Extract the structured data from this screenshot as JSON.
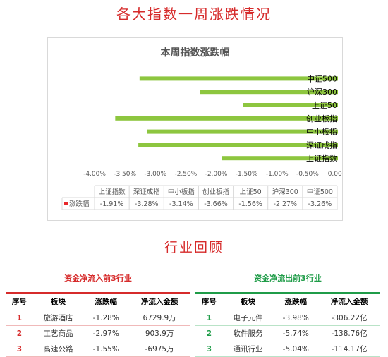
{
  "page": {
    "title": "各大指数一周涨跌情况",
    "section_title": "行业回顾"
  },
  "chart_data": {
    "type": "bar",
    "orientation": "horizontal",
    "title": "本周指数涨跌幅",
    "categories": [
      "中证500",
      "沪深300",
      "上证50",
      "创业板指",
      "中小板指",
      "深证成指",
      "上证指数"
    ],
    "series": [
      {
        "name": "涨跌幅",
        "values": [
          -3.26,
          -2.27,
          -1.56,
          -3.66,
          -3.14,
          -3.28,
          -1.91
        ],
        "color": "#8dc63f"
      }
    ],
    "xlim": [
      -4.0,
      0.0
    ],
    "xticks": [
      "-4.00%",
      "-3.50%",
      "-3.00%",
      "-2.50%",
      "-2.00%",
      "-1.50%",
      "-1.00%",
      "-0.50%",
      "0.00%"
    ],
    "data_table": {
      "headers": [
        "上证指数",
        "深证成指",
        "中小板指",
        "创业板指",
        "上证50",
        "沪深300",
        "中证500"
      ],
      "row_label": "涨跌幅",
      "row_marker_color": "#e8272b",
      "values": [
        "-1.91%",
        "-3.28%",
        "-3.14%",
        "-3.66%",
        "-1.56%",
        "-2.27%",
        "-3.26%"
      ]
    }
  },
  "inflow_table": {
    "heading": "资金净流入前3行业",
    "headers": [
      "序号",
      "板块",
      "涨跌幅",
      "净流入金额"
    ],
    "rows": [
      [
        "1",
        "旅游酒店",
        "-1.28%",
        "6729.9万"
      ],
      [
        "2",
        "工艺商品",
        "-2.97%",
        "903.9万"
      ],
      [
        "3",
        "高速公路",
        "-1.55%",
        "-6975万"
      ]
    ]
  },
  "outflow_table": {
    "heading": "资金净流出前3行业",
    "headers": [
      "序号",
      "板块",
      "涨跌幅",
      "净流入金额"
    ],
    "rows": [
      [
        "1",
        "电子元件",
        "-3.98%",
        "-306.22亿"
      ],
      [
        "2",
        "软件服务",
        "-5.74%",
        "-138.76亿"
      ],
      [
        "3",
        "通讯行业",
        "-5.04%",
        "-114.17亿"
      ]
    ]
  }
}
